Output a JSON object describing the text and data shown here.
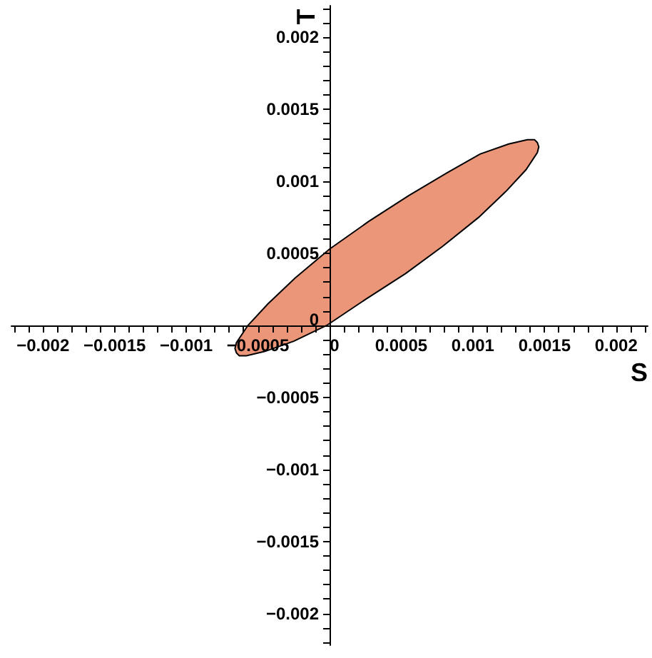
{
  "chart_data": {
    "type": "area",
    "xlabel": "S",
    "ylabel": "T",
    "series": [
      {
        "color": "#eb9679",
        "x": [
          0.00145,
          0.00143,
          0.00138,
          0.00125,
          0.00105,
          0.00082,
          0.00055,
          0.00027,
          0.0,
          -0.00024,
          -0.00043,
          -0.00057,
          -0.00065,
          -0.00066,
          -0.00065,
          -0.00063,
          -0.00058,
          -0.00045,
          -0.00025,
          -2e-05,
          0.00025,
          0.00053,
          0.00079,
          0.00104,
          0.00123,
          0.00137,
          0.00145,
          0.00146
        ],
        "values": [
          0.00127,
          0.00129,
          0.00129,
          0.00126,
          0.00119,
          0.00106,
          0.0009,
          0.00072,
          0.00053,
          0.00033,
          0.00015,
          0.0,
          -0.00012,
          -0.00016,
          -0.00019,
          -0.00021,
          -0.00021,
          -0.00018,
          -0.00011,
          0.0,
          0.00018,
          0.00036,
          0.00055,
          0.00075,
          0.00093,
          0.00108,
          0.0012,
          0.00124
        ]
      }
    ],
    "xlim": [
      -0.00222,
      0.00222
    ],
    "ylim": [
      -0.00222,
      0.00222
    ],
    "xticks": [
      {
        "value": -0.0022,
        "label": null
      },
      {
        "value": -0.0021,
        "label": null
      },
      {
        "value": -0.002,
        "label": "−0.002"
      },
      {
        "value": -0.0019,
        "label": null
      },
      {
        "value": -0.0018,
        "label": null
      },
      {
        "value": -0.0017,
        "label": null
      },
      {
        "value": -0.0016,
        "label": null
      },
      {
        "value": -0.0015,
        "label": "−0.0015"
      },
      {
        "value": -0.0014,
        "label": null
      },
      {
        "value": -0.0013,
        "label": null
      },
      {
        "value": -0.0012,
        "label": null
      },
      {
        "value": -0.0011,
        "label": null
      },
      {
        "value": -0.001,
        "label": "−0.001"
      },
      {
        "value": -0.0009,
        "label": null
      },
      {
        "value": -0.0008,
        "label": null
      },
      {
        "value": -0.0007,
        "label": null
      },
      {
        "value": -0.0006,
        "label": null
      },
      {
        "value": -0.0005,
        "label": "−0.0005"
      },
      {
        "value": -0.0004,
        "label": null
      },
      {
        "value": -0.0003,
        "label": null
      },
      {
        "value": -0.0002,
        "label": null
      },
      {
        "value": -0.0001,
        "label": null
      },
      0,
      {
        "value": 0.0001,
        "label": null
      },
      {
        "value": 0.0002,
        "label": null
      },
      {
        "value": 0.0003,
        "label": null
      },
      {
        "value": 0.0004,
        "label": null
      },
      0.0005,
      {
        "value": 0.0006,
        "label": null
      },
      {
        "value": 0.0007,
        "label": null
      },
      {
        "value": 0.0008,
        "label": null
      },
      {
        "value": 0.0009,
        "label": null
      },
      0.001,
      {
        "value": 0.0011,
        "label": null
      },
      {
        "value": 0.0012,
        "label": null
      },
      {
        "value": 0.0013,
        "label": null
      },
      {
        "value": 0.0014,
        "label": null
      },
      0.0015,
      {
        "value": 0.0016,
        "label": null
      },
      {
        "value": 0.0017,
        "label": null
      },
      {
        "value": 0.0018,
        "label": null
      },
      {
        "value": 0.0019,
        "label": null
      },
      0.002,
      {
        "value": 0.0021,
        "label": null
      },
      {
        "value": 0.0022,
        "label": null
      }
    ],
    "yticks": [
      {
        "value": -0.0022,
        "label": null
      },
      {
        "value": -0.0021,
        "label": null
      },
      {
        "value": -0.002,
        "label": "−0.002"
      },
      {
        "value": -0.0019,
        "label": null
      },
      {
        "value": -0.0018,
        "label": null
      },
      {
        "value": -0.0017,
        "label": null
      },
      {
        "value": -0.0016,
        "label": null
      },
      {
        "value": -0.0015,
        "label": "−0.0015"
      },
      {
        "value": -0.0014,
        "label": null
      },
      {
        "value": -0.0013,
        "label": null
      },
      {
        "value": -0.0012,
        "label": null
      },
      {
        "value": -0.0011,
        "label": null
      },
      {
        "value": -0.001,
        "label": "−0.001"
      },
      {
        "value": -0.0009,
        "label": null
      },
      {
        "value": -0.0008,
        "label": null
      },
      {
        "value": -0.0007,
        "label": null
      },
      {
        "value": -0.0006,
        "label": null
      },
      {
        "value": -0.0005,
        "label": "−0.0005"
      },
      {
        "value": -0.0004,
        "label": null
      },
      {
        "value": -0.0003,
        "label": null
      },
      {
        "value": -0.0002,
        "label": null
      },
      {
        "value": -0.0001,
        "label": null
      },
      0,
      {
        "value": 0.0001,
        "label": null
      },
      {
        "value": 0.0002,
        "label": null
      },
      {
        "value": 0.0003,
        "label": null
      },
      {
        "value": 0.0004,
        "label": null
      },
      0.0005,
      {
        "value": 0.0006,
        "label": null
      },
      {
        "value": 0.0007,
        "label": null
      },
      {
        "value": 0.0008,
        "label": null
      },
      {
        "value": 0.0009,
        "label": null
      },
      0.001,
      {
        "value": 0.0011,
        "label": null
      },
      {
        "value": 0.0012,
        "label": null
      },
      {
        "value": 0.0013,
        "label": null
      },
      {
        "value": 0.0014,
        "label": null
      },
      0.0015,
      {
        "value": 0.0016,
        "label": null
      },
      {
        "value": 0.0017,
        "label": null
      },
      {
        "value": 0.0018,
        "label": null
      },
      {
        "value": 0.0019,
        "label": null
      },
      0.002,
      {
        "value": 0.0021,
        "label": null
      },
      {
        "value": 0.0022,
        "label": null
      }
    ]
  }
}
